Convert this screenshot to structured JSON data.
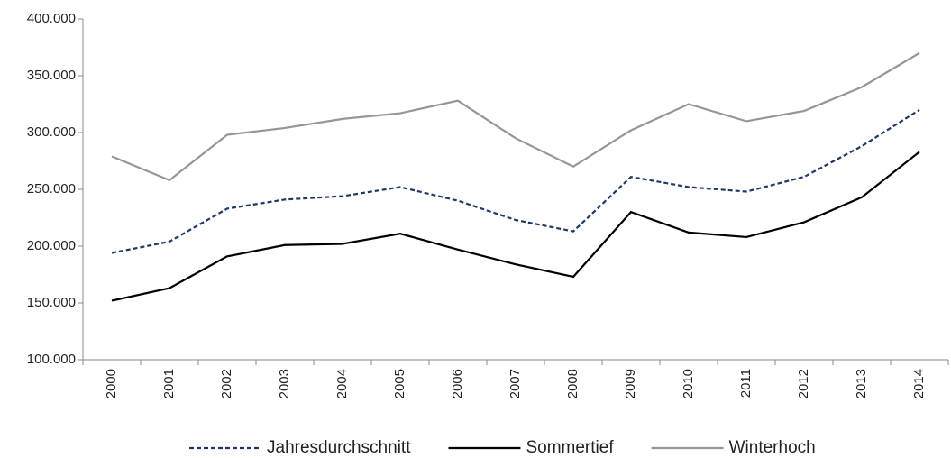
{
  "chart_data": {
    "type": "line",
    "categories": [
      "2000",
      "2001",
      "2002",
      "2003",
      "2004",
      "2005",
      "2006",
      "2007",
      "2008",
      "2009",
      "2010",
      "2011",
      "2012",
      "2013",
      "2014"
    ],
    "series": [
      {
        "name": "Jahresdurchschnitt",
        "color": "#1f3864",
        "dashed": true,
        "values": [
          194000,
          204000,
          233000,
          241000,
          244000,
          252000,
          240000,
          223000,
          213000,
          261000,
          252000,
          248000,
          261000,
          288000,
          320000
        ]
      },
      {
        "name": "Sommertief",
        "color": "#000000",
        "dashed": false,
        "values": [
          152000,
          163000,
          191000,
          201000,
          202000,
          211000,
          197000,
          184000,
          173000,
          230000,
          212000,
          208000,
          221000,
          243000,
          283000
        ]
      },
      {
        "name": "Winterhoch",
        "color": "#969696",
        "dashed": false,
        "values": [
          279000,
          258000,
          298000,
          304000,
          312000,
          317000,
          328000,
          295000,
          270000,
          302000,
          325000,
          310000,
          319000,
          340000,
          370000
        ]
      }
    ],
    "ylim": [
      100000,
      400000
    ],
    "yticks": [
      {
        "value": 100000,
        "label": "100.000"
      },
      {
        "value": 150000,
        "label": "150.000"
      },
      {
        "value": 200000,
        "label": "200.000"
      },
      {
        "value": 250000,
        "label": "250.000"
      },
      {
        "value": 300000,
        "label": "300.000"
      },
      {
        "value": 350000,
        "label": "350.000"
      },
      {
        "value": 400000,
        "label": "400.000"
      }
    ],
    "grid": false
  }
}
